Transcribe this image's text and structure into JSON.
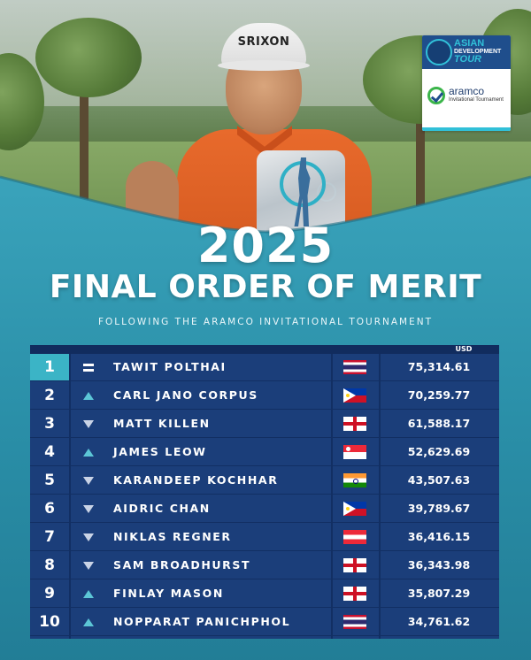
{
  "header": {
    "year": "2025",
    "title": "FINAL ORDER OF MERIT",
    "subtitle": "FOLLOWING THE ARAMCO INVITATIONAL TOURNAMENT"
  },
  "logo": {
    "tour_line1": "ASIAN",
    "tour_line2": "DEVELOPMENT",
    "tour_line3": "TOUR",
    "sponsor_name": "aramco",
    "sponsor_event": "Invitational Tournament"
  },
  "photo": {
    "cap_logo": "SRIXON"
  },
  "colors": {
    "background_teal": "#2a8fa8",
    "table_navy": "#1b3e7a",
    "highlight_cyan": "#3bb4c6"
  },
  "table": {
    "currency_label": "USD",
    "rows": [
      {
        "rank": "1",
        "movement": "equal",
        "movement_icon": "equal-icon",
        "name": "TAWIT POLTHAI",
        "flag": "thailand",
        "flag_icon": "thailand-flag-icon",
        "amount": "75,314.61"
      },
      {
        "rank": "2",
        "movement": "up",
        "movement_icon": "arrow-up-icon",
        "name": "CARL JANO CORPUS",
        "flag": "philippines",
        "flag_icon": "philippines-flag-icon",
        "amount": "70,259.77"
      },
      {
        "rank": "3",
        "movement": "down",
        "movement_icon": "arrow-down-icon",
        "name": "MATT KILLEN",
        "flag": "england",
        "flag_icon": "england-flag-icon",
        "amount": "61,588.17"
      },
      {
        "rank": "4",
        "movement": "up",
        "movement_icon": "arrow-up-icon",
        "name": "JAMES LEOW",
        "flag": "singapore",
        "flag_icon": "singapore-flag-icon",
        "amount": "52,629.69"
      },
      {
        "rank": "5",
        "movement": "down",
        "movement_icon": "arrow-down-icon",
        "name": "KARANDEEP KOCHHAR",
        "flag": "india",
        "flag_icon": "india-flag-icon",
        "amount": "43,507.63"
      },
      {
        "rank": "6",
        "movement": "down",
        "movement_icon": "arrow-down-icon",
        "name": "AIDRIC CHAN",
        "flag": "philippines",
        "flag_icon": "philippines-flag-icon",
        "amount": "39,789.67"
      },
      {
        "rank": "7",
        "movement": "down",
        "movement_icon": "arrow-down-icon",
        "name": "NIKLAS REGNER",
        "flag": "austria",
        "flag_icon": "austria-flag-icon",
        "amount": "36,416.15"
      },
      {
        "rank": "8",
        "movement": "down",
        "movement_icon": "arrow-down-icon",
        "name": "SAM BROADHURST",
        "flag": "england",
        "flag_icon": "england-flag-icon",
        "amount": "36,343.98"
      },
      {
        "rank": "9",
        "movement": "up",
        "movement_icon": "arrow-up-icon",
        "name": "FINLAY MASON",
        "flag": "england",
        "flag_icon": "england-flag-icon",
        "amount": "35,807.29"
      },
      {
        "rank": "10",
        "movement": "up",
        "movement_icon": "arrow-up-icon",
        "name": "NOPPARAT PANICHPHOL",
        "flag": "thailand",
        "flag_icon": "thailand-flag-icon",
        "amount": "34,761.62"
      }
    ]
  }
}
